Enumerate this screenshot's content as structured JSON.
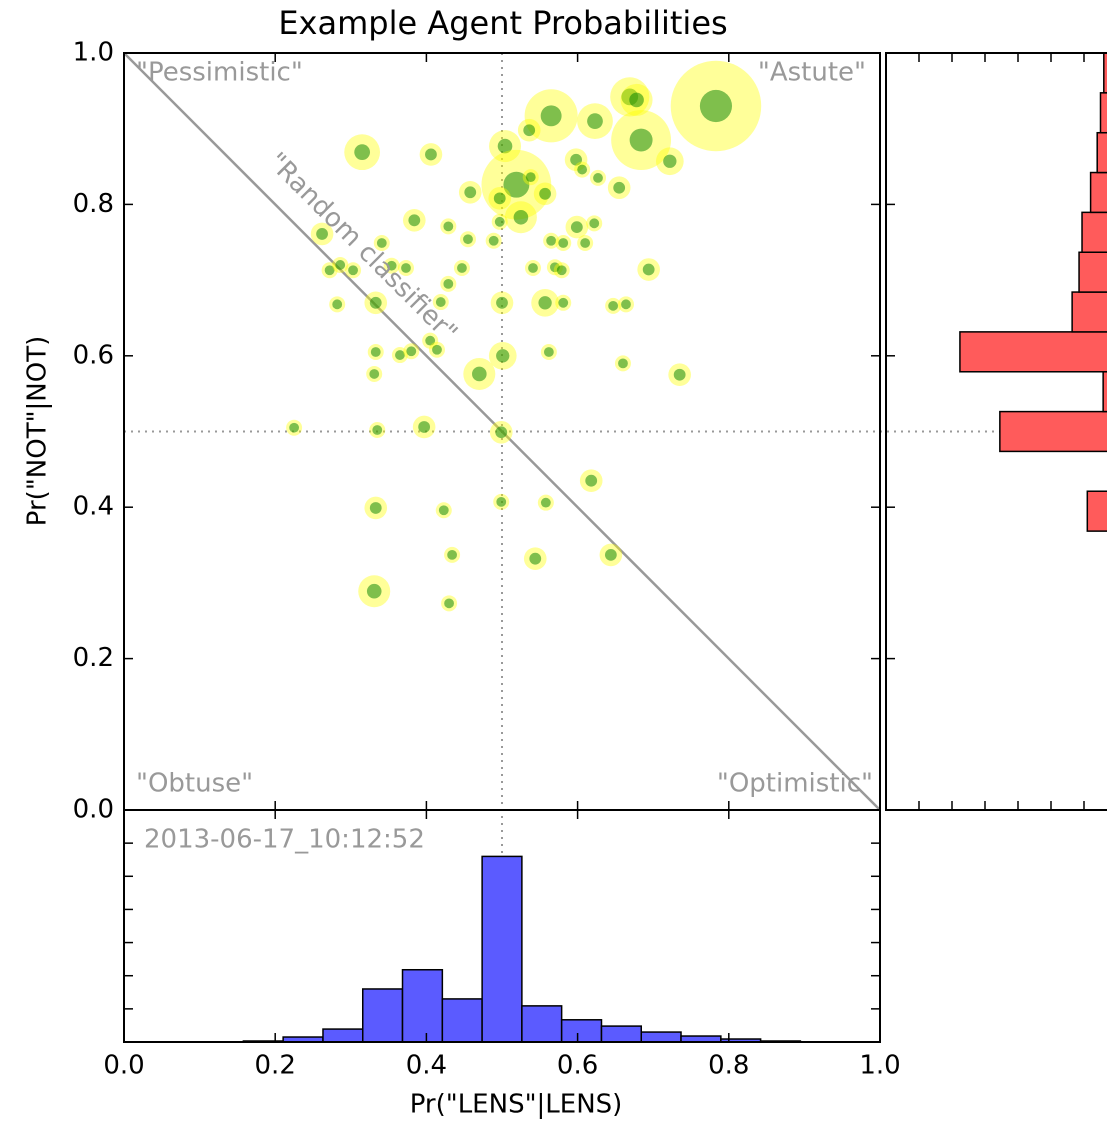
{
  "chart_data": [
    {
      "type": "bubble",
      "title": "Example Agent Probabilities",
      "ylabel": "Pr(\"NOT\"|NOT)",
      "corner_labels": {
        "top_left": "\"Pessimistic\"",
        "top_right": "\"Astute\"",
        "bottom_left": "\"Obtuse\"",
        "bottom_right": "\"Optimistic\""
      },
      "diagonal_label": "\"Random classifier\"",
      "diagonal": true,
      "reference_lines": {
        "x": 0.5,
        "y": 0.5
      },
      "color": "#008000",
      "halo_color": "#ffff00",
      "xlim": [
        0,
        1
      ],
      "ylim": [
        0,
        1
      ],
      "xticks": [
        0,
        0.2,
        0.4,
        0.6,
        0.8,
        1
      ],
      "yticks": [
        {
          "value": 0,
          "label": "0.0"
        },
        {
          "value": 0.2,
          "label": "0.2"
        },
        {
          "value": 0.4,
          "label": "0.4"
        },
        {
          "value": 0.6,
          "label": "0.6"
        },
        {
          "value": 0.8,
          "label": "0.8"
        },
        {
          "value": 1,
          "label": "1.0"
        }
      ],
      "x": [
        0.783,
        0.669,
        0.678,
        0.565,
        0.623,
        0.536,
        0.684,
        0.315,
        0.406,
        0.504,
        0.598,
        0.606,
        0.627,
        0.722,
        0.519,
        0.538,
        0.557,
        0.497,
        0.458,
        0.655,
        0.525,
        0.384,
        0.429,
        0.497,
        0.599,
        0.622,
        0.262,
        0.455,
        0.489,
        0.565,
        0.581,
        0.61,
        0.341,
        0.272,
        0.286,
        0.303,
        0.354,
        0.373,
        0.447,
        0.541,
        0.57,
        0.579,
        0.694,
        0.429,
        0.419,
        0.282,
        0.333,
        0.5,
        0.557,
        0.581,
        0.647,
        0.664,
        0.405,
        0.333,
        0.365,
        0.38,
        0.414,
        0.501,
        0.562,
        0.47,
        0.331,
        0.66,
        0.735,
        0.225,
        0.335,
        0.397,
        0.499,
        0.618,
        0.333,
        0.423,
        0.499,
        0.558,
        0.434,
        0.544,
        0.644,
        0.331,
        0.43
      ],
      "y": [
        0.93,
        0.942,
        0.938,
        0.917,
        0.91,
        0.898,
        0.885,
        0.869,
        0.866,
        0.877,
        0.859,
        0.846,
        0.835,
        0.857,
        0.826,
        0.836,
        0.814,
        0.808,
        0.816,
        0.822,
        0.783,
        0.779,
        0.771,
        0.777,
        0.77,
        0.775,
        0.761,
        0.754,
        0.752,
        0.752,
        0.749,
        0.749,
        0.749,
        0.713,
        0.72,
        0.713,
        0.719,
        0.716,
        0.716,
        0.716,
        0.717,
        0.713,
        0.714,
        0.695,
        0.671,
        0.668,
        0.67,
        0.67,
        0.67,
        0.67,
        0.666,
        0.668,
        0.62,
        0.605,
        0.601,
        0.606,
        0.608,
        0.6,
        0.605,
        0.576,
        0.576,
        0.59,
        0.575,
        0.505,
        0.502,
        0.506,
        0.499,
        0.435,
        0.399,
        0.396,
        0.407,
        0.406,
        0.337,
        0.332,
        0.337,
        0.289,
        0.273
      ],
      "sizes": [
        32,
        6,
        4,
        11,
        5,
        2,
        14,
        5,
        2,
        4,
        2,
        1,
        1,
        3,
        19,
        1,
        2,
        2,
        2,
        2,
        4,
        2,
        1,
        1,
        2,
        1,
        2,
        1,
        1,
        1,
        1,
        1,
        1,
        1,
        1,
        1,
        1,
        1,
        1,
        1,
        1,
        1,
        2,
        1,
        1,
        1,
        2,
        2,
        3,
        1,
        1,
        1,
        1,
        1,
        1,
        1,
        1,
        3,
        1,
        4,
        1,
        1,
        2,
        1,
        1,
        2,
        2,
        2,
        2,
        1,
        1,
        1,
        1,
        2,
        2,
        4,
        1
      ]
    },
    {
      "type": "histogram",
      "xlabel": "Pr(\"LENS\"|LENS)",
      "annotation": "2013-06-17_10:12:52",
      "color": "#5b5bff",
      "xlim": [
        0,
        1
      ],
      "ylim": [
        0,
        7
      ],
      "xticks": [
        {
          "value": 0,
          "label": "0.0"
        },
        {
          "value": 0.2,
          "label": "0.2"
        },
        {
          "value": 0.4,
          "label": "0.4"
        },
        {
          "value": 0.6,
          "label": "0.6"
        },
        {
          "value": 0.8,
          "label": "0.8"
        },
        {
          "value": 1,
          "label": "1.0"
        }
      ],
      "yticks": [
        0,
        1,
        2,
        3,
        4,
        5,
        6,
        7
      ],
      "bins": [
        0,
        0.0526,
        0.1053,
        0.1579,
        0.2105,
        0.2632,
        0.3158,
        0.3684,
        0.4211,
        0.4737,
        0.5263,
        0.5789,
        0.6316,
        0.6842,
        0.7368,
        0.7895,
        0.8421,
        0.8947,
        0.9474,
        1
      ],
      "counts": [
        0,
        0,
        0,
        0.03,
        0.15,
        0.39,
        1.6,
        2.18,
        1.3,
        5.6,
        1.09,
        0.67,
        0.48,
        0.3,
        0.18,
        0.09,
        0.03,
        0,
        0
      ]
    },
    {
      "type": "histogram",
      "orientation": "horizontal",
      "color": "#ff5b5b",
      "xlim": [
        7,
        0
      ],
      "ylim": [
        0,
        1
      ],
      "xticks": [
        0,
        1,
        2,
        3,
        4,
        5,
        6,
        7
      ],
      "yticks": [
        0,
        0.2,
        0.4,
        0.6,
        0.8,
        1
      ],
      "bins": [
        0,
        0.0526,
        0.1053,
        0.1579,
        0.2105,
        0.2632,
        0.3158,
        0.3684,
        0.4211,
        0.4737,
        0.5263,
        0.5789,
        0.6316,
        0.6842,
        0.7368,
        0.7895,
        0.8421,
        0.8947,
        0.9474,
        1
      ],
      "counts": [
        0,
        0,
        0,
        0,
        0,
        0,
        0,
        0.9,
        0.1,
        3.55,
        0.42,
        4.76,
        1.36,
        1.15,
        1.06,
        0.8,
        0.6,
        0.5,
        0.4
      ]
    }
  ]
}
